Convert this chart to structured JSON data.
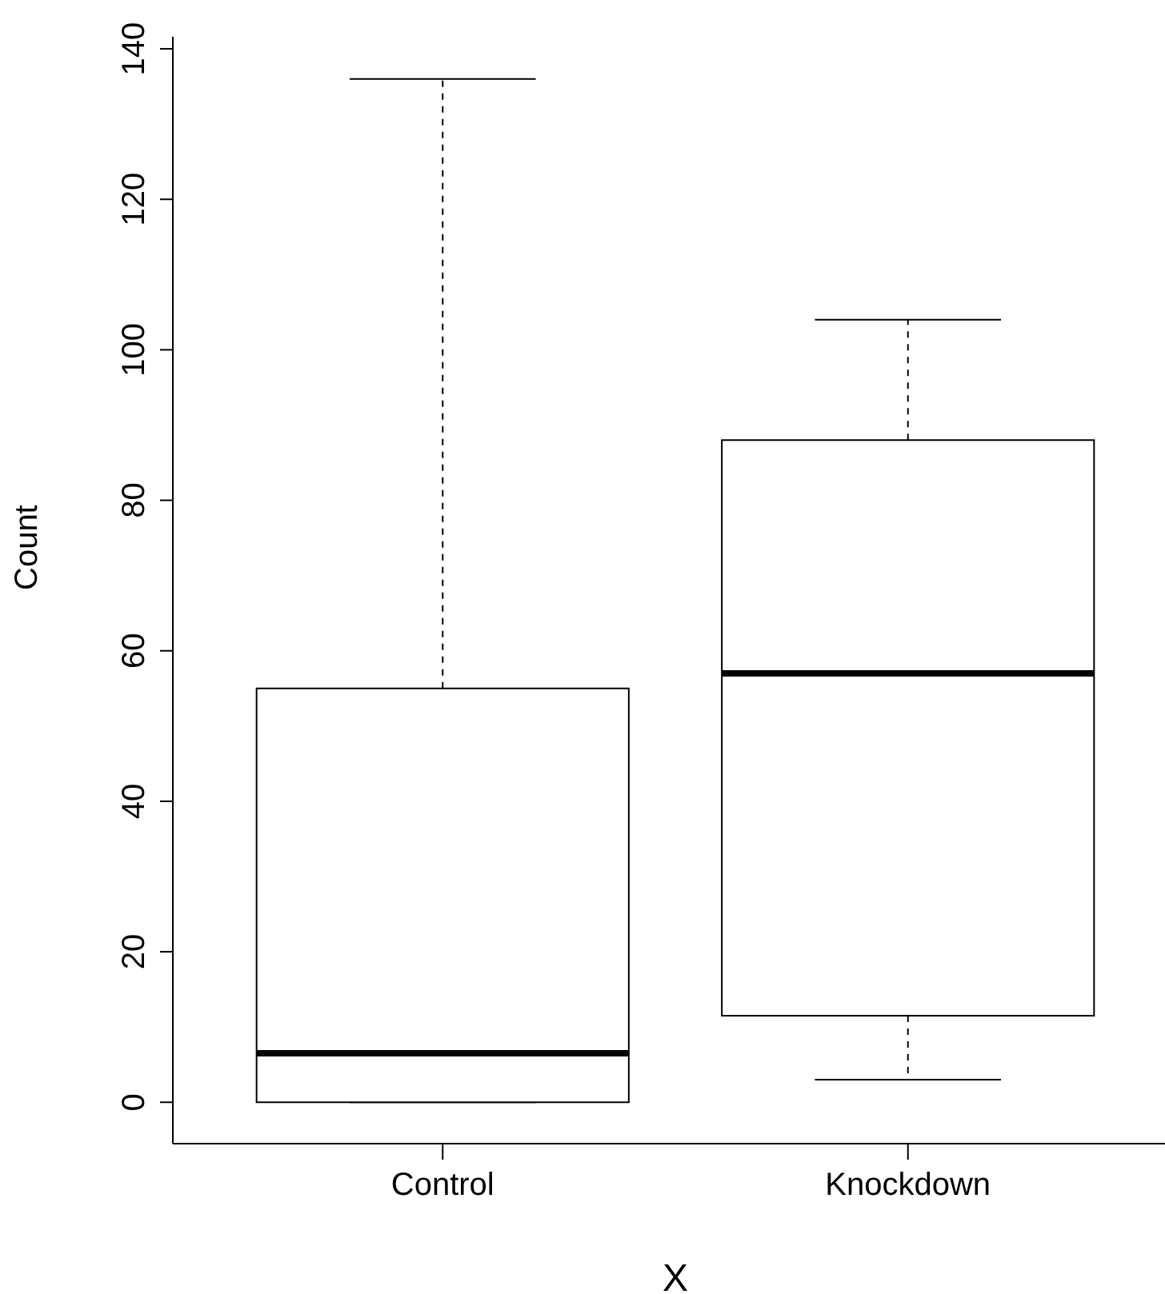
{
  "chart_data": {
    "type": "box",
    "xlabel": "X",
    "ylabel": "Count",
    "categories": [
      "Control",
      "Knockdown"
    ],
    "boxes": [
      {
        "low": 0,
        "q1": 0,
        "median": 6.5,
        "q3": 55,
        "high": 136
      },
      {
        "low": 3,
        "q1": 11.5,
        "median": 57,
        "q3": 88,
        "high": 104
      }
    ],
    "ylim": [
      -5.5,
      141.6
    ],
    "yticks": [
      0,
      20,
      40,
      60,
      80,
      100,
      120,
      140
    ]
  }
}
